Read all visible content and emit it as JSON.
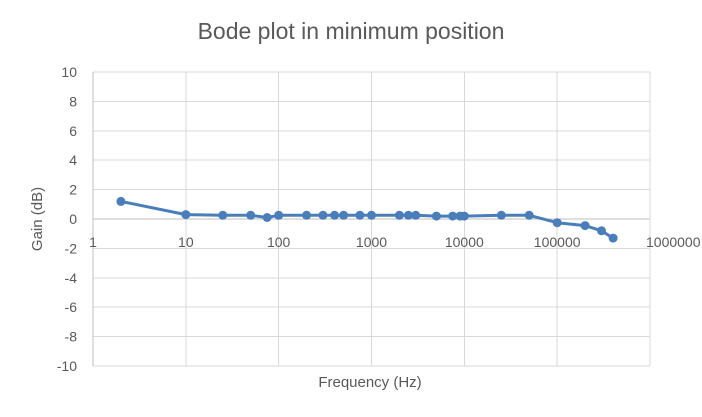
{
  "chart_data": {
    "type": "scatter",
    "title": "Bode plot in minimum position",
    "xlabel": "Frequency (Hz)",
    "ylabel": "Gain (dB)",
    "x_scale": "log",
    "xlim": [
      1,
      1000000
    ],
    "ylim": [
      -10,
      10
    ],
    "x_ticks": [
      1,
      10,
      100,
      1000,
      10000,
      100000,
      1000000
    ],
    "x_tick_labels": [
      "1",
      "10",
      "100",
      "1000",
      "10000",
      "100000",
      "1000000"
    ],
    "y_ticks": [
      10,
      8,
      6,
      4,
      2,
      0,
      -2,
      -4,
      -6,
      -8,
      -10
    ],
    "y_tick_labels": [
      "10",
      "8",
      "6",
      "4",
      "2",
      "0",
      "-2",
      "-4",
      "-6",
      "-8",
      "-10"
    ],
    "grid": true,
    "legend": "none",
    "series_color": "#4a7ebb",
    "series": [
      {
        "points": [
          {
            "x": 2,
            "y": 1.2
          },
          {
            "x": 10,
            "y": 0.3
          },
          {
            "x": 25,
            "y": 0.25
          },
          {
            "x": 50,
            "y": 0.25
          },
          {
            "x": 75,
            "y": 0.1
          },
          {
            "x": 100,
            "y": 0.25
          },
          {
            "x": 200,
            "y": 0.25
          },
          {
            "x": 300,
            "y": 0.25
          },
          {
            "x": 400,
            "y": 0.25
          },
          {
            "x": 500,
            "y": 0.25
          },
          {
            "x": 750,
            "y": 0.25
          },
          {
            "x": 1000,
            "y": 0.25
          },
          {
            "x": 2000,
            "y": 0.25
          },
          {
            "x": 2500,
            "y": 0.25
          },
          {
            "x": 3000,
            "y": 0.25
          },
          {
            "x": 5000,
            "y": 0.2
          },
          {
            "x": 7500,
            "y": 0.2
          },
          {
            "x": 9000,
            "y": 0.2
          },
          {
            "x": 10000,
            "y": 0.2
          },
          {
            "x": 25000,
            "y": 0.25
          },
          {
            "x": 50000,
            "y": 0.25
          },
          {
            "x": 100000,
            "y": -0.25
          },
          {
            "x": 200000,
            "y": -0.45
          },
          {
            "x": 300000,
            "y": -0.8
          },
          {
            "x": 400000,
            "y": -1.3
          }
        ]
      }
    ]
  }
}
